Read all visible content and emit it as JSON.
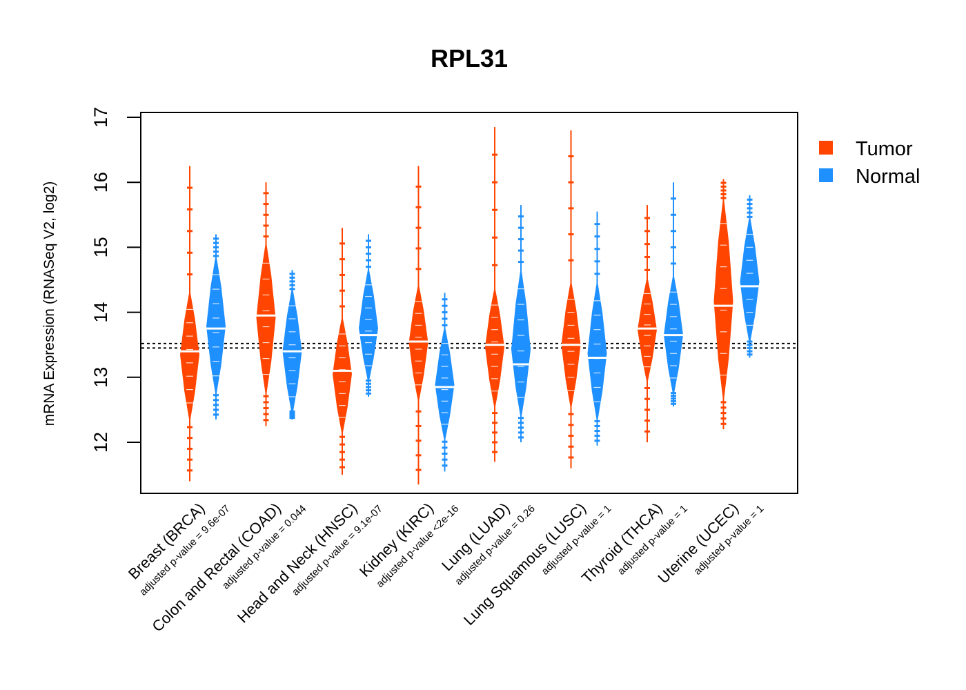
{
  "chart_data": {
    "type": "violin",
    "title": "RPL31",
    "xlabel": "",
    "ylabel": "mRNA Expression (RNASeq V2, log2)",
    "ylim": [
      11.25,
      17.05
    ],
    "yticks": [
      12,
      13,
      14,
      15,
      16,
      17
    ],
    "reference_lines": [
      13.45,
      13.52
    ],
    "legend": {
      "position": "top-right",
      "entries": [
        {
          "name": "Tumor",
          "color": "#FF4500"
        },
        {
          "name": "Normal",
          "color": "#1E90FF"
        }
      ]
    },
    "categories": [
      {
        "label": "Breast (BRCA)",
        "pvalue": "adjusted p-value = 9.6e-07"
      },
      {
        "label": "Colon and Rectal (COAD)",
        "pvalue": "adjusted p-value = 0.044"
      },
      {
        "label": "Head and Neck (HNSC)",
        "pvalue": "adjusted p-value = 9.1e-07"
      },
      {
        "label": "Kidney (KIRC)",
        "pvalue": "adjusted p-value <2e-16"
      },
      {
        "label": "Lung (LUAD)",
        "pvalue": "adjusted p-value = 0.26"
      },
      {
        "label": "Lung Squamous (LUSC)",
        "pvalue": "adjusted p-value = 1"
      },
      {
        "label": "Thyroid (THCA)",
        "pvalue": "adjusted p-value = 1"
      },
      {
        "label": "Uterine (UCEC)",
        "pvalue": "adjusted p-value = 1"
      }
    ],
    "series": [
      {
        "name": "Tumor",
        "color": "#FF4500",
        "values": [
          {
            "min": 11.4,
            "q_low": 12.4,
            "median": 13.4,
            "q_high": 14.25,
            "max": 16.25
          },
          {
            "min": 12.25,
            "q_low": 12.8,
            "median": 13.95,
            "q_high": 15.0,
            "max": 16.0
          },
          {
            "min": 11.5,
            "q_low": 12.2,
            "median": 13.1,
            "q_high": 13.85,
            "max": 15.3
          },
          {
            "min": 11.35,
            "q_low": 12.7,
            "median": 13.55,
            "q_high": 14.35,
            "max": 16.25
          },
          {
            "min": 11.7,
            "q_low": 12.6,
            "median": 13.5,
            "q_high": 14.3,
            "max": 16.85
          },
          {
            "min": 11.6,
            "q_low": 12.6,
            "median": 13.5,
            "q_high": 14.4,
            "max": 16.8
          },
          {
            "min": 12.0,
            "q_low": 13.0,
            "median": 13.75,
            "q_high": 14.45,
            "max": 15.65
          },
          {
            "min": 12.2,
            "q_low": 12.7,
            "median": 14.1,
            "q_high": 15.7,
            "max": 16.05
          }
        ]
      },
      {
        "name": "Normal",
        "color": "#1E90FF",
        "values": [
          {
            "min": 12.35,
            "q_low": 12.8,
            "median": 13.75,
            "q_high": 14.8,
            "max": 15.2
          },
          {
            "min": 12.35,
            "q_low": 12.5,
            "median": 13.4,
            "q_high": 14.3,
            "max": 14.65
          },
          {
            "min": 12.7,
            "q_low": 13.0,
            "median": 13.65,
            "q_high": 14.6,
            "max": 15.2
          },
          {
            "min": 11.55,
            "q_low": 12.1,
            "median": 12.85,
            "q_high": 13.7,
            "max": 14.3
          },
          {
            "min": 12.0,
            "q_low": 12.45,
            "median": 13.2,
            "q_high": 14.6,
            "max": 15.65
          },
          {
            "min": 11.95,
            "q_low": 12.4,
            "median": 13.3,
            "q_high": 14.4,
            "max": 15.55
          },
          {
            "min": 12.55,
            "q_low": 12.8,
            "median": 13.65,
            "q_high": 14.5,
            "max": 16.0
          },
          {
            "min": 13.3,
            "q_low": 13.6,
            "median": 14.4,
            "q_high": 15.4,
            "max": 15.8
          }
        ]
      }
    ]
  }
}
